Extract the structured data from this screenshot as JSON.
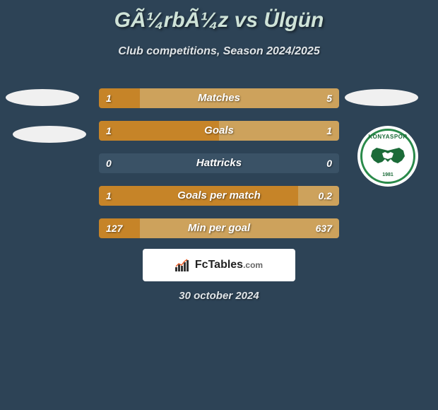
{
  "title": "GÃ¼rbÃ¼z vs Ülgün",
  "subtitle": "Club competitions, Season 2024/2025",
  "date": "30 october 2024",
  "badge": {
    "name": "KONYASPOR",
    "year": "1981"
  },
  "logo": {
    "name": "FcTables",
    "domain": ".com"
  },
  "colors": {
    "background": "#2d4356",
    "bar_left": "#c68428",
    "bar_right": "#cda25c",
    "title_color": "#cfe3d8",
    "badge_green": "#2a8a4a"
  },
  "stats": [
    {
      "label": "Matches",
      "left_val": "1",
      "right_val": "5",
      "left_pct": 17,
      "right_pct": 83
    },
    {
      "label": "Goals",
      "left_val": "1",
      "right_val": "1",
      "left_pct": 50,
      "right_pct": 50
    },
    {
      "label": "Hattricks",
      "left_val": "0",
      "right_val": "0",
      "left_pct": 0,
      "right_pct": 0
    },
    {
      "label": "Goals per match",
      "left_val": "1",
      "right_val": "0.2",
      "left_pct": 83,
      "right_pct": 17
    },
    {
      "label": "Min per goal",
      "left_val": "127",
      "right_val": "637",
      "left_pct": 17,
      "right_pct": 83
    }
  ]
}
